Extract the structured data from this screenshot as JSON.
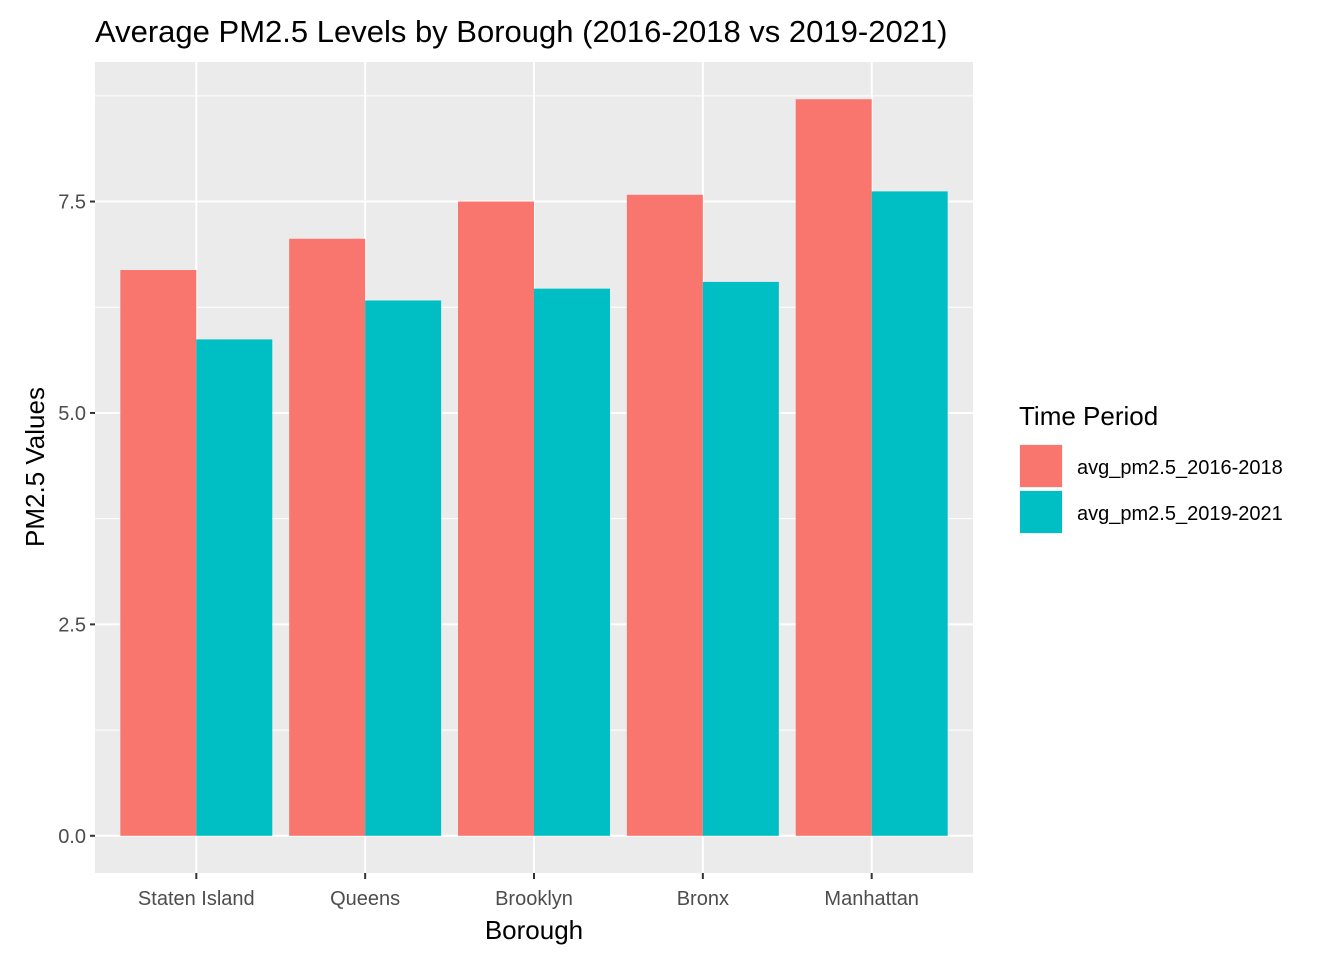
{
  "chart_data": {
    "type": "bar",
    "title": "Average PM2.5 Levels by Borough (2016-2018 vs 2019-2021)",
    "xlabel": "Borough",
    "ylabel": "PM2.5 Values",
    "categories": [
      "Staten Island",
      "Queens",
      "Brooklyn",
      "Bronx",
      "Manhattan"
    ],
    "series": [
      {
        "name": "avg_pm2.5_2016-2018",
        "color": "#F8766D",
        "values": [
          6.69,
          7.06,
          7.5,
          7.58,
          8.71
        ]
      },
      {
        "name": "avg_pm2.5_2019-2021",
        "color": "#00BFC4",
        "values": [
          5.87,
          6.33,
          6.47,
          6.55,
          7.62
        ]
      }
    ],
    "ylim": [
      -0.44,
      9.15
    ],
    "yticks": [
      0.0,
      2.5,
      5.0,
      7.5
    ],
    "ytick_labels": [
      "0.0",
      "2.5",
      "5.0",
      "7.5"
    ],
    "legend": {
      "title": "Time Period",
      "position": "right"
    },
    "grid": true,
    "panel_background": "#EBEBEB",
    "grid_color": "#FFFFFF"
  }
}
